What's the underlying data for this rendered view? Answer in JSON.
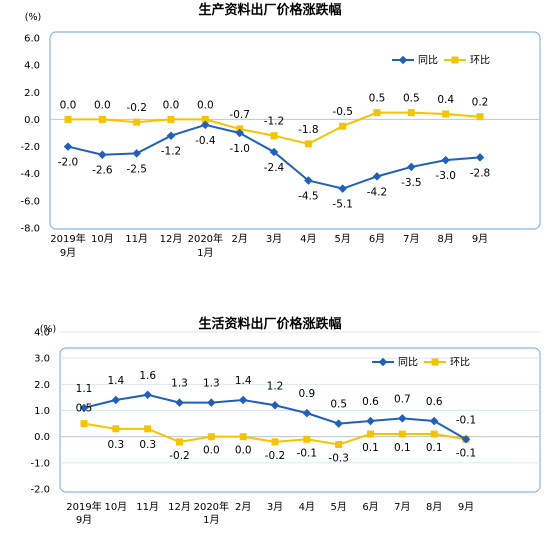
{
  "colors": {
    "yoy": "#1F5FBF",
    "mom": "#F6C300",
    "frame": "#8EB4E3",
    "grid": "#E0E6EF",
    "zero": "#BFC7D1"
  },
  "chart_data": [
    {
      "type": "line",
      "title": "生产资料出厂价格涨跌幅",
      "unit": "(%)",
      "categories": [
        [
          "2019年",
          "9月"
        ],
        [
          "10月"
        ],
        [
          "11月"
        ],
        [
          "12月"
        ],
        [
          "2020年",
          "1月"
        ],
        [
          "2月"
        ],
        [
          "3月"
        ],
        [
          "4月"
        ],
        [
          "5月"
        ],
        [
          "6月"
        ],
        [
          "7月"
        ],
        [
          "8月"
        ],
        [
          "9月"
        ]
      ],
      "ylim": [
        -8.0,
        6.0
      ],
      "yticks": [
        "6.0",
        "4.0",
        "2.0",
        "0.0",
        "-2.0",
        "-4.0",
        "-6.0",
        "-8.0"
      ],
      "legend_position": "top-right",
      "grid": false,
      "series": [
        {
          "name": "同比",
          "values": [
            -2.0,
            -2.6,
            -2.5,
            -1.2,
            -0.4,
            -1.0,
            -2.4,
            -4.5,
            -5.1,
            -4.2,
            -3.5,
            -3.0,
            -2.8
          ],
          "labels": [
            "-2.0",
            "-2.6",
            "-2.5",
            "-1.2",
            "-0.4",
            "-1.0",
            "-2.4",
            "-4.5",
            "-5.1",
            "-4.2",
            "-3.5",
            "-3.0",
            "-2.8"
          ]
        },
        {
          "name": "环比",
          "values": [
            0.0,
            0.0,
            -0.2,
            0.0,
            0.0,
            -0.7,
            -1.2,
            -1.8,
            -0.5,
            0.5,
            0.5,
            0.4,
            0.2
          ],
          "labels": [
            "0.0",
            "0.0",
            "-0.2",
            "0.0",
            "0.0",
            "-0.7",
            "-1.2",
            "-1.8",
            "-0.5",
            "0.5",
            "0.5",
            "0.4",
            "0.2"
          ]
        }
      ]
    },
    {
      "type": "line",
      "title": "生活资料出厂价格涨跌幅",
      "unit": "(%)",
      "categories": [
        [
          "2019年",
          "9月"
        ],
        [
          "10月"
        ],
        [
          "11月"
        ],
        [
          "12月"
        ],
        [
          "2020年",
          "1月"
        ],
        [
          "2月"
        ],
        [
          "3月"
        ],
        [
          "4月"
        ],
        [
          "5月"
        ],
        [
          "6月"
        ],
        [
          "7月"
        ],
        [
          "8月"
        ],
        [
          "9月"
        ]
      ],
      "ylim": [
        -2.0,
        4.0
      ],
      "yticks": [
        "4.0",
        "3.0",
        "2.0",
        "1.0",
        "0.0",
        "-1.0",
        "-2.0"
      ],
      "legend_position": "top-right",
      "grid": true,
      "series": [
        {
          "name": "同比",
          "values": [
            1.1,
            1.4,
            1.6,
            1.3,
            1.3,
            1.4,
            1.2,
            0.9,
            0.5,
            0.6,
            0.7,
            0.6,
            -0.1
          ],
          "labels": [
            "1.1",
            "1.4",
            "1.6",
            "1.3",
            "1.3",
            "1.4",
            "1.2",
            "0.9",
            "0.5",
            "0.6",
            "0.7",
            "0.6",
            "-0.1"
          ]
        },
        {
          "name": "环比",
          "values": [
            0.5,
            0.3,
            0.3,
            -0.2,
            0.0,
            0.0,
            -0.2,
            -0.1,
            -0.3,
            0.1,
            0.1,
            0.1,
            -0.1
          ],
          "labels": [
            "0.5",
            "0.3",
            "0.3",
            "-0.2",
            "0.0",
            "0.0",
            "-0.2",
            "-0.1",
            "-0.3",
            "0.1",
            "0.1",
            "0.1",
            "-0.1"
          ]
        }
      ]
    }
  ]
}
